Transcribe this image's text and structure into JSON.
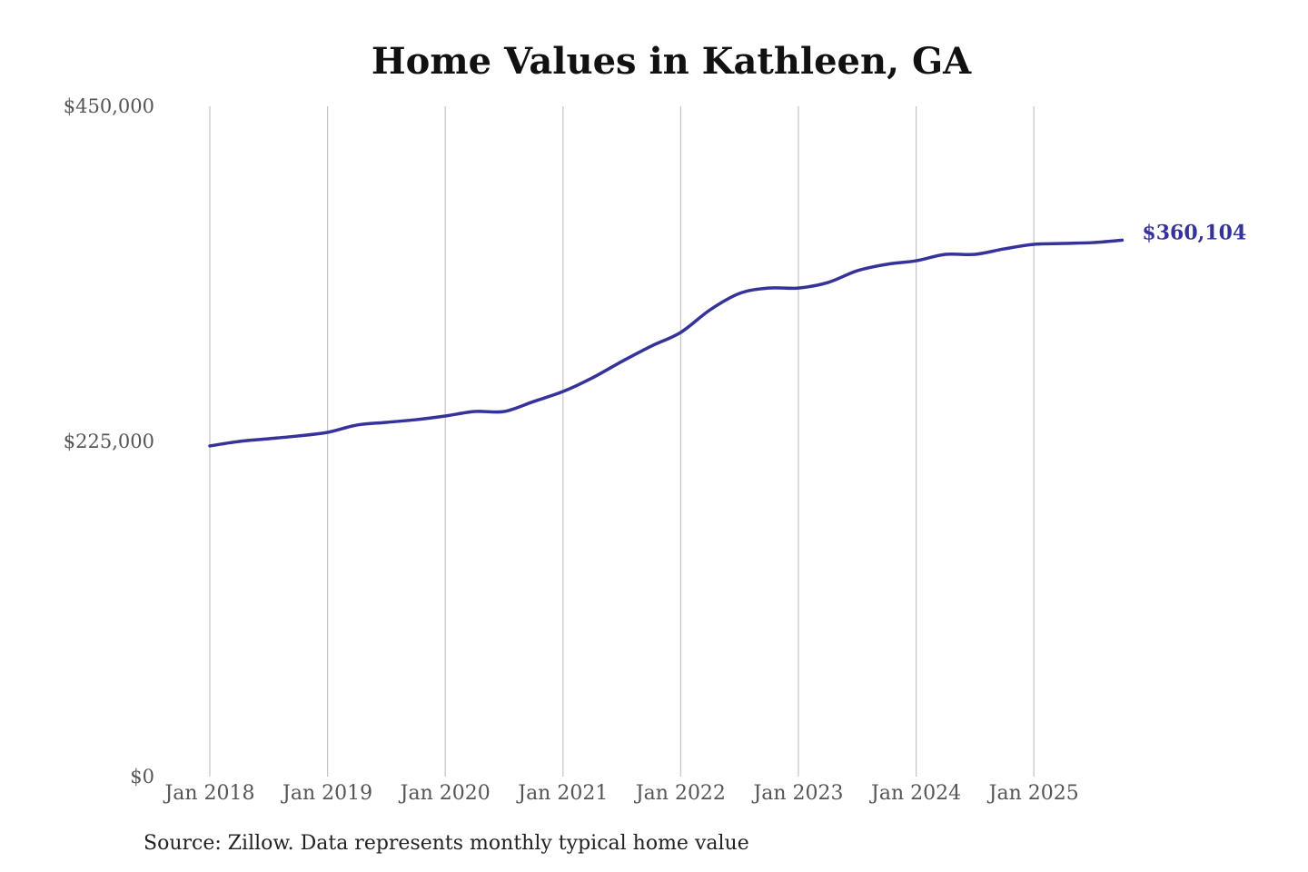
{
  "chart_data": {
    "type": "line",
    "title": "Home Values in Kathleen, GA",
    "xlabel": "",
    "ylabel": "",
    "ylim": [
      0,
      450000
    ],
    "y_ticks": [
      0,
      225000,
      450000
    ],
    "y_tick_labels": [
      "$0",
      "$225,000",
      "$450,000"
    ],
    "x_tick_labels": [
      "Jan 2018",
      "Jan 2019",
      "Jan 2020",
      "Jan 2021",
      "Jan 2022",
      "Jan 2023",
      "Jan 2024",
      "Jan 2025"
    ],
    "grid": "vertical",
    "line_color": "#35329a",
    "end_label": "$360,104",
    "x": [
      "2018-01",
      "2018-04",
      "2018-07",
      "2018-10",
      "2019-01",
      "2019-04",
      "2019-07",
      "2019-10",
      "2020-01",
      "2020-04",
      "2020-07",
      "2020-10",
      "2021-01",
      "2021-04",
      "2021-07",
      "2021-10",
      "2022-01",
      "2022-04",
      "2022-07",
      "2022-10",
      "2023-01",
      "2023-04",
      "2023-07",
      "2023-10",
      "2024-01",
      "2024-04",
      "2024-07",
      "2024-10",
      "2025-01",
      "2025-04",
      "2025-07",
      "2025-10"
    ],
    "values": [
      222000,
      225000,
      226800,
      228700,
      231100,
      236000,
      237800,
      239600,
      242100,
      245100,
      245100,
      251800,
      258500,
      267700,
      278700,
      289000,
      298200,
      313400,
      324400,
      328000,
      328000,
      331700,
      339600,
      343900,
      346300,
      350600,
      350600,
      354300,
      357300,
      357900,
      358500,
      360104
    ]
  },
  "source": "Source: Zillow. Data represents monthly typical home value"
}
